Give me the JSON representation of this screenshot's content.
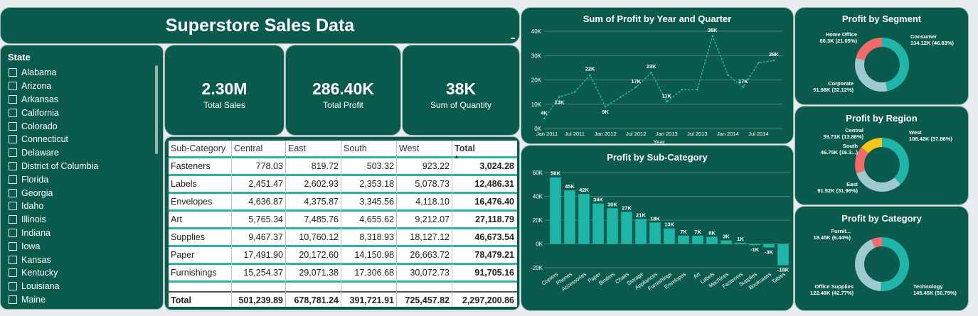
{
  "title": "Superstore Sales Data",
  "slicer": {
    "header": "State",
    "items": [
      "Alabama",
      "Arizona",
      "Arkansas",
      "California",
      "Colorado",
      "Connecticut",
      "Delaware",
      "District of Columbia",
      "Florida",
      "Georgia",
      "Idaho",
      "Illinois",
      "Indiana",
      "Iowa",
      "Kansas",
      "Kentucky",
      "Louisiana",
      "Maine"
    ]
  },
  "kpis": [
    {
      "value": "2.30M",
      "label": "Total Sales"
    },
    {
      "value": "286.40K",
      "label": "Total Profit"
    },
    {
      "value": "38K",
      "label": "Sum of Quantity"
    }
  ],
  "matrix": {
    "headers": [
      "Sub-Category",
      "Central",
      "East",
      "South",
      "West",
      "Total"
    ],
    "rows": [
      [
        "Fasteners",
        "778.03",
        "819.72",
        "503.32",
        "923.22",
        "3,024.28"
      ],
      [
        "Labels",
        "2,451.47",
        "2,602.93",
        "2,353.18",
        "5,078.73",
        "12,486.31"
      ],
      [
        "Envelopes",
        "4,636.87",
        "4,375.87",
        "3,345.56",
        "4,118.10",
        "16,476.40"
      ],
      [
        "Art",
        "5,765.34",
        "7,485.76",
        "4,655.62",
        "9,212.07",
        "27,118.79"
      ],
      [
        "Supplies",
        "9,467.37",
        "10,760.12",
        "8,318.93",
        "18,127.12",
        "46,673.54"
      ],
      [
        "Paper",
        "17,491.90",
        "20,172.60",
        "14,150.98",
        "26,663.72",
        "78,479.21"
      ],
      [
        "Furnishings",
        "15,254.37",
        "29,071.38",
        "17,306.68",
        "30,072.73",
        "91,705.16"
      ]
    ],
    "total": [
      "Total",
      "501,239.89",
      "678,781.24",
      "391,721.91",
      "725,457.82",
      "2,297,200.86"
    ]
  },
  "chart_data": [
    {
      "type": "line",
      "title": "Sum of Profit by Year and Quarter",
      "xlabel": "Year",
      "ylabel": "",
      "x": [
        "2011 Q1",
        "2011 Q2",
        "2011 Q3",
        "2011 Q4",
        "2012 Q1",
        "2012 Q2",
        "2012 Q3",
        "2012 Q4",
        "2013 Q1",
        "2013 Q2",
        "2013 Q3",
        "2013 Q4",
        "2014 Q1",
        "2014 Q2",
        "2014 Q3",
        "2014 Q4"
      ],
      "x_ticks": [
        "Jan 2011",
        "Jul 2011",
        "Jan 2012",
        "Jul 2012",
        "Jan 2013",
        "Jul 2013",
        "Jan 2014",
        "Jul 2014"
      ],
      "y": [
        4,
        13,
        15,
        22,
        9,
        13,
        17,
        23,
        11,
        16,
        16,
        38,
        22,
        17,
        27,
        28
      ],
      "data_labels": [
        {
          "i": 0,
          "text": "4K"
        },
        {
          "i": 1,
          "text": "13K"
        },
        {
          "i": 3,
          "text": "22K"
        },
        {
          "i": 4,
          "text": "9K"
        },
        {
          "i": 6,
          "text": "17K"
        },
        {
          "i": 7,
          "text": "23K"
        },
        {
          "i": 8,
          "text": "11K"
        },
        {
          "i": 11,
          "text": "38K"
        },
        {
          "i": 13,
          "text": "17K"
        },
        {
          "i": 15,
          "text": "28K"
        }
      ],
      "y_ticks": [
        "0K",
        "10K",
        "20K",
        "30K",
        "40K"
      ],
      "ylim": [
        0,
        40
      ],
      "color": "#2ec4b6"
    },
    {
      "type": "bar",
      "title": "Profit by Sub-Category",
      "categories": [
        "Copiers",
        "Phones",
        "Accessories",
        "Paper",
        "Binders",
        "Chairs",
        "Storage",
        "Appliances",
        "Furnishings",
        "Envelopes",
        "Art",
        "Labels",
        "Machines",
        "Fasteners",
        "Supplies",
        "Bookcases",
        "Tables"
      ],
      "values": [
        56,
        45,
        42,
        34,
        30,
        27,
        21,
        18,
        13,
        7,
        7,
        6,
        3,
        1,
        -1,
        -3,
        -18
      ],
      "labels": [
        "56K",
        "45K",
        "42K",
        "34K",
        "30K",
        "27K",
        "21K",
        "18K",
        "13K",
        "7K",
        "7K",
        "6K",
        "3K",
        "1K",
        "-1K",
        "-3K",
        "-18K"
      ],
      "y_ticks": [
        "-20K",
        "0K",
        "20K",
        "40K",
        "60K"
      ],
      "ylim": [
        -20,
        60
      ],
      "color": "#1fb5a8"
    },
    {
      "type": "pie",
      "title": "Profit by Segment",
      "slices": [
        {
          "name": "Consumer",
          "label": "134.12K (46.83%)",
          "value": 46.83,
          "color": "#1fb5a8"
        },
        {
          "name": "Corporate",
          "label": "91.98K (32.12%)",
          "value": 32.12,
          "color": "#9ec9cf"
        },
        {
          "name": "Home Office",
          "label": "60.3K (21.05%)",
          "value": 21.05,
          "color": "#f26b6b"
        }
      ]
    },
    {
      "type": "pie",
      "title": "Profit by Region",
      "slices": [
        {
          "name": "West",
          "label": "108.42K (37.86%)",
          "value": 37.86,
          "color": "#1fb5a8"
        },
        {
          "name": "East",
          "label": "91.52K (31.96%)",
          "value": 31.96,
          "color": "#9ec9cf"
        },
        {
          "name": "South",
          "label": "46.75K (16.3...)",
          "value": 16.32,
          "color": "#f26b6b"
        },
        {
          "name": "Central",
          "label": "39.71K (13.86%)",
          "value": 13.86,
          "color": "#f5c518"
        }
      ]
    },
    {
      "type": "pie",
      "title": "Profit by Category",
      "slices": [
        {
          "name": "Technology",
          "label": "145.45K (50.79%)",
          "value": 50.79,
          "color": "#1fb5a8"
        },
        {
          "name": "Office Supplies",
          "label": "122.49K (42.77%)",
          "value": 42.77,
          "color": "#9ec9cf"
        },
        {
          "name": "Furnit...",
          "label": "18.45K (6.44%)",
          "value": 6.44,
          "color": "#f26b6b"
        }
      ]
    }
  ]
}
